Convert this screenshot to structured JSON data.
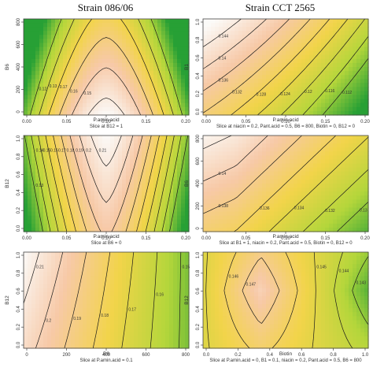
{
  "columns": [
    "Strain 086/06",
    "Strain CCT 2565"
  ],
  "colors": {
    "hot": "#fbfaf8",
    "warm": "#f7c9a7",
    "mid": "#f2d44a",
    "cool": "#b4d63b",
    "cold": "#27a035",
    "contour": "#1a1a1a",
    "axis": "#444444"
  },
  "chart_data": [
    {
      "type": "heatmap",
      "panel": "left-1",
      "title": "Strain 086/06",
      "xlabel": "P.amin.acid",
      "ylabel": "B6",
      "slice": "Slice at B12 = 1",
      "xlim": [
        0,
        0.21
      ],
      "ylim": [
        0,
        850
      ],
      "xticks": [
        "0.00",
        "0.05",
        "0.10",
        "0.15",
        "0.20"
      ],
      "yticks": [
        "0",
        "200",
        "400",
        "600",
        "800"
      ],
      "contour_labels": [
        "0.14",
        "0.15",
        "0.16",
        "0.17",
        "0.13",
        "0.12"
      ]
    },
    {
      "type": "heatmap",
      "panel": "right-1",
      "title": "Strain CCT 2565",
      "xlabel": "P.amin.acid",
      "ylabel": "B1",
      "slice": "Slice at niacin = 0.2, Pant.acid = 0.5, B6 = 800, Biotin = 0, B12 = 0",
      "xlim": [
        0,
        0.21
      ],
      "ylim": [
        0,
        1.0
      ],
      "xticks": [
        "0.00",
        "0.05",
        "0.10",
        "0.15",
        "0.20"
      ],
      "yticks": [
        "0.0",
        "0.2",
        "0.4",
        "0.6",
        "0.8",
        "1.0"
      ],
      "contour_labels": [
        "0.144",
        "0.14",
        "0.136",
        "0.132",
        "0.128",
        "0.124",
        "0.12",
        "0.116",
        "0.112"
      ]
    },
    {
      "type": "heatmap",
      "panel": "left-2",
      "xlabel": "P.amin.acid",
      "ylabel": "B12",
      "slice": "Slice at B6 = 0",
      "xlim": [
        0,
        0.21
      ],
      "ylim": [
        0,
        1.0
      ],
      "xticks": [
        "0.00",
        "0.05",
        "0.10",
        "0.15",
        "0.20"
      ],
      "yticks": [
        "0.0",
        "0.2",
        "0.4",
        "0.6",
        "0.8",
        "1.0"
      ],
      "contour_labels": [
        "0.21",
        "0.2",
        "0.19",
        "0.18",
        "0.17",
        "0.16",
        "0.15",
        "0.14",
        "0.13"
      ]
    },
    {
      "type": "heatmap",
      "panel": "right-2",
      "xlabel": "P.amin.acid",
      "ylabel": "B6",
      "slice": "Slice at B1 = 1, niacin = 0.2, Pant.acid = 0.5, Biotin = 0, B12 = 0",
      "xlim": [
        0,
        0.21
      ],
      "ylim": [
        0,
        850
      ],
      "xticks": [
        "0.00",
        "0.05",
        "0.10",
        "0.15",
        "0.20"
      ],
      "yticks": [
        "0",
        "200",
        "400",
        "600",
        "800"
      ],
      "contour_labels": [
        "0.142",
        "0.14",
        "0.138",
        "0.136",
        "0.134",
        "0.132",
        "0.13"
      ]
    },
    {
      "type": "heatmap",
      "panel": "left-3",
      "xlabel": "B6",
      "ylabel": "B12",
      "slice": "Slice at P.amin.acid = 0.1",
      "xlim": [
        0,
        850
      ],
      "ylim": [
        0,
        1.0
      ],
      "xticks": [
        "0",
        "200",
        "400",
        "600",
        "800"
      ],
      "yticks": [
        "0.0",
        "0.2",
        "0.4",
        "0.6",
        "0.8",
        "1.0"
      ],
      "contour_labels": [
        "0.21",
        "0.2",
        "0.19",
        "0.18",
        "0.17",
        "0.16",
        "0.15"
      ]
    },
    {
      "type": "heatmap",
      "panel": "right-3",
      "xlabel": "Biotin",
      "ylabel": "B12",
      "slice": "Slice at P.amin.acid = 0, B1 = 0.1, niacin = 0.2, Pant.acid = 0.5, B6 = 800",
      "xlim": [
        0,
        1.0
      ],
      "ylim": [
        0,
        1.0
      ],
      "xticks": [
        "0.0",
        "0.2",
        "0.4",
        "0.6",
        "0.8",
        "1.0"
      ],
      "yticks": [
        "0.0",
        "0.2",
        "0.4",
        "0.6",
        "0.8",
        "1.0"
      ],
      "contour_labels": [
        "0.149",
        "0.148",
        "0.147",
        "0.146",
        "0.145",
        "0.144",
        "0.143"
      ]
    }
  ]
}
